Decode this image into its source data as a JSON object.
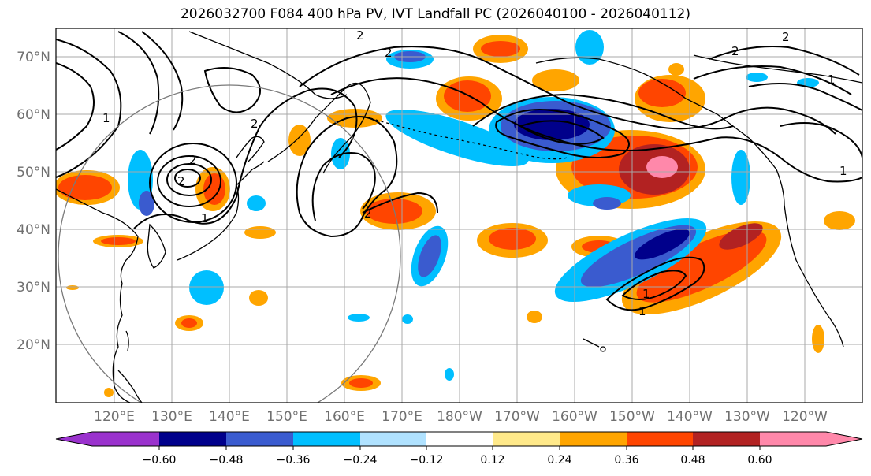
{
  "title": "2026032700 F084 400 hPa PV, IVT Landfall PC (2026040100 - 2026040112)",
  "map": {
    "lat_labels": [
      "70°N",
      "60°N",
      "50°N",
      "40°N",
      "30°N",
      "20°N"
    ],
    "lon_labels": [
      "120°E",
      "130°E",
      "140°E",
      "150°E",
      "160°E",
      "170°E",
      "180°W",
      "170°W",
      "160°W",
      "150°W",
      "140°W",
      "130°W",
      "120°W"
    ],
    "contour_labels": [
      "2",
      "2",
      "2",
      "2",
      "2",
      "2",
      "2",
      "1",
      "1",
      "1",
      "1",
      "1",
      "2",
      "1"
    ]
  },
  "colorbar": {
    "ticks": [
      "−0.60",
      "−0.48",
      "−0.36",
      "−0.24",
      "−0.12",
      "0.12",
      "0.24",
      "0.36",
      "0.48",
      "0.60"
    ],
    "colors": [
      "#9a32cd",
      "#00008b",
      "#3a5bcf",
      "#00bfff",
      "#b0e2ff",
      "#ffffff",
      "#ffe98a",
      "#ffa500",
      "#ff4500",
      "#b22222",
      "#ff88aa"
    ]
  }
}
